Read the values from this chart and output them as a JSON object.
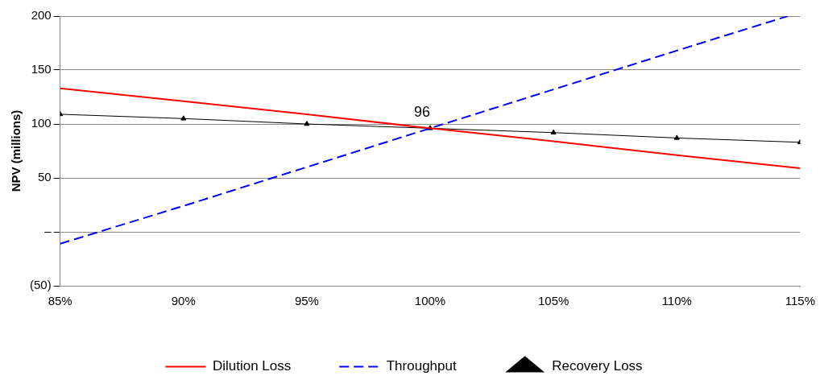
{
  "chart_data": {
    "type": "line",
    "ylabel": "NPV (millions)",
    "x": [
      85,
      90,
      95,
      100,
      105,
      110,
      115
    ],
    "series": [
      {
        "name": "Dilution Loss",
        "color": "#ff0000",
        "line_style": "solid",
        "marker": "none",
        "values": [
          133,
          121,
          109,
          96,
          84,
          71,
          59
        ]
      },
      {
        "name": "Throughput",
        "color": "#0000ff",
        "line_style": "dashed",
        "marker": "none",
        "x": [
          85,
          90,
          95,
          100,
          105,
          110,
          114.5
        ],
        "values": [
          -11,
          24,
          60,
          96,
          132,
          168,
          200
        ]
      },
      {
        "name": "Recovery Loss",
        "color": "#000000",
        "line_style": "solid",
        "marker": "triangle",
        "values": [
          109,
          105,
          100,
          96,
          92,
          87,
          83
        ]
      }
    ],
    "xlim": [
      85,
      115
    ],
    "xticks": [
      {
        "value": 85,
        "label": "85%"
      },
      {
        "value": 90,
        "label": "90%"
      },
      {
        "value": 95,
        "label": "95%"
      },
      {
        "value": 100,
        "label": "100%"
      },
      {
        "value": 105,
        "label": "105%"
      },
      {
        "value": 110,
        "label": "110%"
      },
      {
        "value": 115,
        "label": "115%"
      }
    ],
    "ylim": [
      -50,
      200
    ],
    "yticks": [
      {
        "value": -50,
        "label": "(50)"
      },
      {
        "value": 0,
        "label": "–"
      },
      50,
      100,
      150,
      200
    ],
    "grid": "y",
    "legend": "bottom",
    "annotations": [
      {
        "text": "96",
        "x": 100,
        "y": 96
      }
    ]
  }
}
